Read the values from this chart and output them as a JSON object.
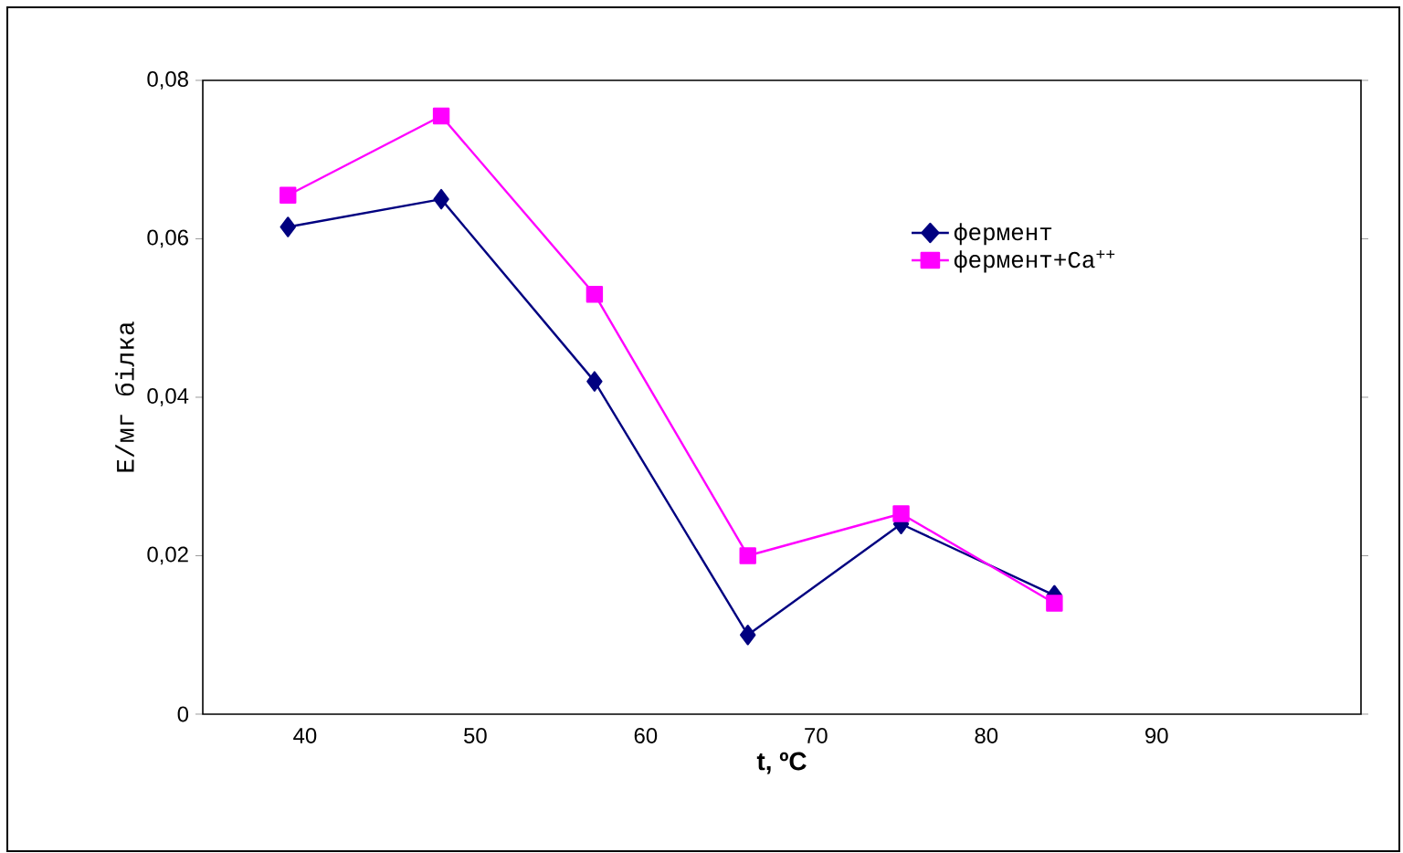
{
  "chart_data": {
    "type": "line",
    "xlabel": "t, ºC",
    "ylabel": "Е/мг білка",
    "x": [
      39,
      48,
      57,
      66,
      75,
      84
    ],
    "series": [
      {
        "name": "фермент",
        "color": "#000080",
        "marker": "diamond",
        "values": [
          0.0615,
          0.065,
          0.042,
          0.01,
          0.024,
          0.015
        ]
      },
      {
        "name": "фермент+Ca$^{++}$",
        "color": "#ff00ff",
        "marker": "square",
        "values": [
          0.0655,
          0.0755,
          0.053,
          0.02,
          0.0253,
          0.014
        ]
      }
    ],
    "xlim": [
      34,
      102
    ],
    "xticks": [
      40,
      50,
      60,
      70,
      80,
      90
    ],
    "ylim": [
      0,
      0.08
    ],
    "yticks": [
      0,
      {
        "value": 0.02,
        "label": "0,02"
      },
      {
        "value": 0.04,
        "label": "0,04"
      },
      {
        "value": 0.06,
        "label": "0,06"
      },
      {
        "value": 0.08,
        "label": "0,08"
      }
    ],
    "grid": false,
    "legend": "top right",
    "line_style": "solid"
  }
}
